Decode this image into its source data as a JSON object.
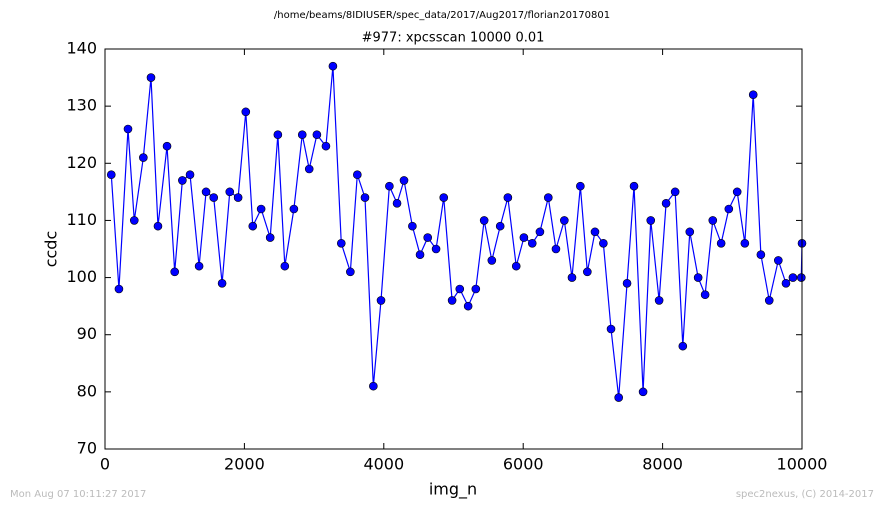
{
  "chart_data": {
    "type": "line",
    "title": "/home/beams/8IDIUSER/spec_data/2017/Aug2017/florian20170801",
    "subtitle": "#977: xpcsscan 10000 0.01",
    "xlabel": "img_n",
    "ylabel": "ccdc",
    "footer_left": "Mon Aug 07 10:11:27 2017",
    "footer_right": "spec2nexus, (C) 2014-2017",
    "x": [
      90,
      200,
      330,
      420,
      550,
      660,
      760,
      890,
      1000,
      1110,
      1220,
      1350,
      1450,
      1560,
      1680,
      1790,
      1910,
      2020,
      2120,
      2240,
      2370,
      2480,
      2580,
      2710,
      2830,
      2930,
      3040,
      3170,
      3270,
      3390,
      3520,
      3620,
      3730,
      3850,
      3960,
      4080,
      4190,
      4290,
      4410,
      4520,
      4630,
      4750,
      4860,
      4980,
      5090,
      5210,
      5320,
      5440,
      5550,
      5670,
      5780,
      5900,
      6010,
      6130,
      6240,
      6360,
      6470,
      6590,
      6700,
      6820,
      6920,
      7030,
      7150,
      7260,
      7370,
      7490,
      7590,
      7720,
      7830,
      7950,
      8050,
      8180,
      8290,
      8390,
      8510,
      8610,
      8720,
      8840,
      8950,
      9070,
      9180,
      9300,
      9410,
      9530,
      9660,
      9770,
      9870,
      9990,
      10000
    ],
    "series": [
      {
        "color": "#0000ff",
        "values": [
          118,
          98,
          126,
          110,
          121,
          135,
          109,
          123,
          101,
          117,
          118,
          102,
          115,
          114,
          99,
          115,
          114,
          129,
          109,
          112,
          107,
          125,
          102,
          112,
          125,
          119,
          125,
          123,
          137,
          106,
          101,
          118,
          114,
          81,
          96,
          116,
          113,
          117,
          109,
          104,
          107,
          105,
          114,
          96,
          98,
          95,
          98,
          110,
          103,
          109,
          114,
          102,
          107,
          106,
          108,
          114,
          105,
          110,
          100,
          116,
          101,
          108,
          106,
          91,
          79,
          99,
          116,
          80,
          110,
          96,
          113,
          115,
          88,
          108,
          100,
          97,
          110,
          106,
          112,
          115,
          106,
          132,
          104,
          96,
          103,
          99,
          100,
          100,
          106
        ]
      }
    ],
    "xlim": [
      0,
      10000
    ],
    "ylim": [
      70,
      140
    ],
    "xticks": [
      0,
      2000,
      4000,
      6000,
      8000,
      10000
    ],
    "yticks": [
      70,
      80,
      90,
      100,
      110,
      120,
      130,
      140
    ]
  }
}
